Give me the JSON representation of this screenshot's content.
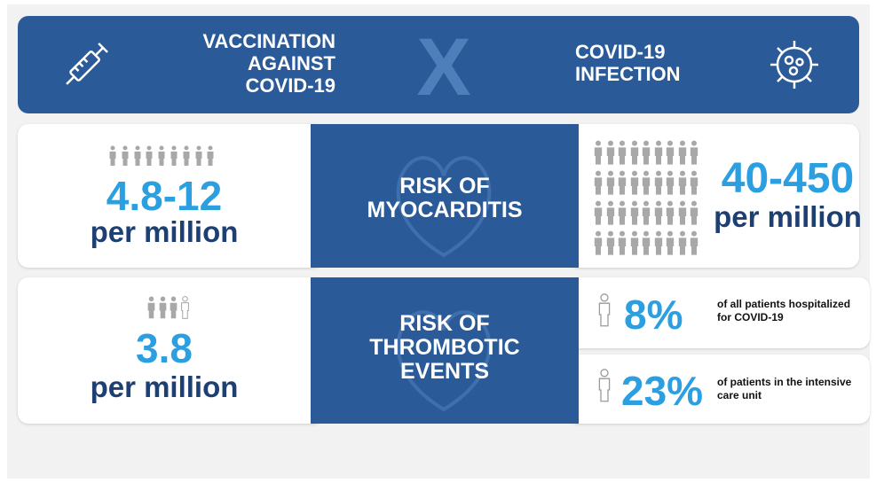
{
  "header": {
    "left_title_lines": [
      "VACCINATION",
      "AGAINST",
      "COVID-19"
    ],
    "center": "X",
    "right_title_lines": [
      "COVID-19",
      "INFECTION"
    ]
  },
  "rows": [
    {
      "label_lines": [
        "RISK OF",
        "MYOCARDITIS"
      ],
      "vaccine": {
        "value": "4.8-12",
        "unit": "per million"
      },
      "infection": {
        "value": "40-450",
        "unit": "per million"
      }
    },
    {
      "label_lines": [
        "RISK OF",
        "THROMBOTIC",
        "EVENTS"
      ],
      "vaccine": {
        "value": "3.8",
        "unit": "per million"
      },
      "infection": [
        {
          "value": "8%",
          "note_lines": [
            "of all patients hospitalized",
            "for COVID-19"
          ]
        },
        {
          "value": "23%",
          "note_lines": [
            "of patients in the intensive",
            "care unit"
          ]
        }
      ]
    }
  ]
}
